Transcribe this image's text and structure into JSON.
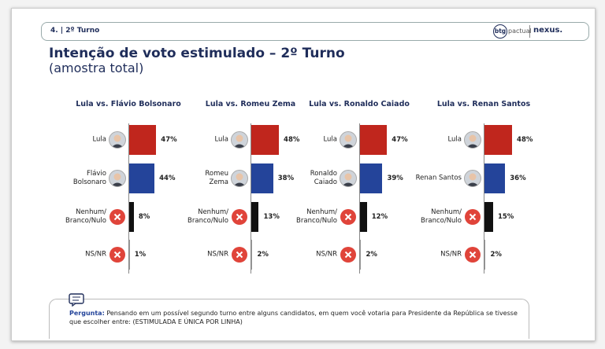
{
  "header": {
    "section": "4. | 2º Turno",
    "logo_mark": "btg",
    "logo_text": "pactual",
    "partner": "nexus."
  },
  "title": "Intenção de voto estimulado – 2º Turno",
  "subtitle": "(amostra total)",
  "chart_data": [
    {
      "type": "bar",
      "title": "Lula vs. Flávio Bolsonaro",
      "categories": [
        "Lula",
        "Flávio\nBolsonaro",
        "Nenhum/\nBranco/Nulo",
        "NS/NR"
      ],
      "values": [
        47,
        44,
        8,
        1
      ],
      "value_labels": [
        "47%",
        "44%",
        "8%",
        "1%"
      ],
      "colors": [
        "#c0261d",
        "#24449a",
        "#111111",
        "#9a9a9a"
      ]
    },
    {
      "type": "bar",
      "title": "Lula vs. Romeu Zema",
      "categories": [
        "Lula",
        "Romeu\nZema",
        "Nenhum/\nBranco/Nulo",
        "NS/NR"
      ],
      "values": [
        48,
        38,
        13,
        2
      ],
      "value_labels": [
        "48%",
        "38%",
        "13%",
        "2%"
      ],
      "colors": [
        "#c0261d",
        "#24449a",
        "#111111",
        "#9a9a9a"
      ]
    },
    {
      "type": "bar",
      "title": "Lula vs. Ronaldo Caiado",
      "categories": [
        "Lula",
        "Ronaldo\nCaiado",
        "Nenhum/\nBranco/Nulo",
        "NS/NR"
      ],
      "values": [
        47,
        39,
        12,
        2
      ],
      "value_labels": [
        "47%",
        "39%",
        "12%",
        "2%"
      ],
      "colors": [
        "#c0261d",
        "#24449a",
        "#111111",
        "#9a9a9a"
      ]
    },
    {
      "type": "bar",
      "title": "Lula vs. Renan Santos",
      "categories": [
        "Lula",
        "Renan Santos",
        "Nenhum/\nBranco/Nulo",
        "NS/NR"
      ],
      "values": [
        48,
        36,
        15,
        2
      ],
      "value_labels": [
        "48%",
        "36%",
        "15%",
        "2%"
      ],
      "colors": [
        "#c0261d",
        "#24449a",
        "#111111",
        "#9a9a9a"
      ]
    }
  ],
  "question": {
    "label": "Pergunta:",
    "text": "Pensando em um possível segundo turno entre alguns candidatos, em quem você votaria para Presidente da República se tivesse que escolher entre: (ESTIMULADA E ÚNICA POR LINHA)"
  }
}
